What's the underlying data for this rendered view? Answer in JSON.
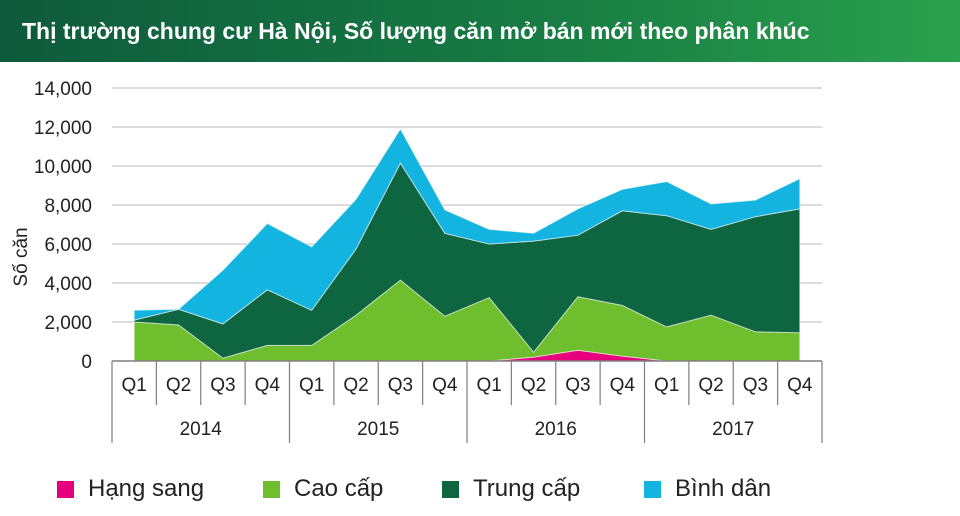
{
  "title": "Thị trường chung cư Hà Nội, Số lượng căn mở bán mới theo phân khúc",
  "chart_data": {
    "type": "area",
    "stacked": true,
    "ylabel": "Số căn",
    "ylim": [
      0,
      14000
    ],
    "yticks": [
      "0",
      "2,000",
      "4,000",
      "6,000",
      "8,000",
      "10,000",
      "12,000",
      "14,000"
    ],
    "grid": true,
    "legend_position": "bottom",
    "categories": [
      "Q1",
      "Q2",
      "Q3",
      "Q4",
      "Q1",
      "Q2",
      "Q3",
      "Q4",
      "Q1",
      "Q2",
      "Q3",
      "Q4",
      "Q1",
      "Q2",
      "Q3",
      "Q4"
    ],
    "years": [
      "2014",
      "2015",
      "2016",
      "2017"
    ],
    "series": [
      {
        "name": "Hạng sang",
        "color": "#e6007e",
        "values": [
          0,
          0,
          0,
          0,
          0,
          0,
          0,
          0,
          0,
          200,
          550,
          250,
          0,
          0,
          0,
          0
        ]
      },
      {
        "name": "Cao cấp",
        "color": "#6ebe2e",
        "values": [
          2000,
          1850,
          150,
          800,
          800,
          2350,
          4150,
          2300,
          3250,
          250,
          2750,
          2600,
          1750,
          2350,
          1500,
          1450
        ]
      },
      {
        "name": "Trung cấp",
        "color": "#0e6640",
        "values": [
          100,
          800,
          1750,
          2850,
          1800,
          3400,
          6000,
          4250,
          2750,
          5700,
          3150,
          4850,
          5700,
          4400,
          5900,
          6350
        ]
      },
      {
        "name": "Bình dân",
        "color": "#14b4e0",
        "values": [
          500,
          0,
          2750,
          3400,
          3250,
          2550,
          1750,
          1200,
          750,
          400,
          1350,
          1100,
          1750,
          1300,
          850,
          1550
        ]
      }
    ]
  }
}
